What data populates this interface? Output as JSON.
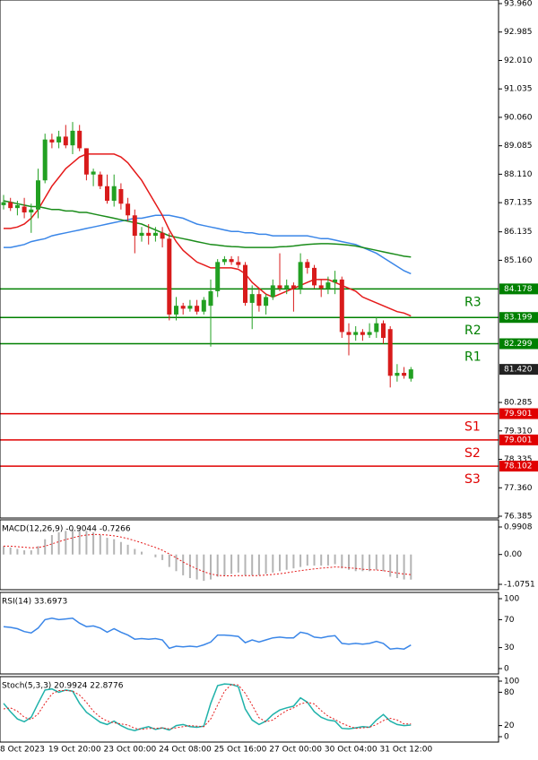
{
  "chart_data": [
    {
      "type": "candlestick",
      "categories": [
        "8 Oct 2023",
        null,
        null,
        null,
        null,
        null,
        null,
        "19 Oct 20:00",
        null,
        null,
        null,
        null,
        null,
        null,
        null,
        "23 Oct 00:00",
        null,
        null,
        null,
        null,
        null,
        null,
        null,
        "24 Oct 08:00",
        null,
        null,
        null,
        null,
        null,
        null,
        null,
        "25 Oct 16:00",
        null,
        null,
        null,
        null,
        null,
        null,
        null,
        "27 Oct 00:00",
        null,
        null,
        null,
        null,
        null,
        null,
        null,
        "30 Oct 04:00",
        null,
        null,
        null,
        null,
        null,
        null,
        null,
        "31 Oct 12:00",
        null,
        null,
        null,
        null
      ],
      "open": [
        87.05,
        87.15,
        86.95,
        87.0,
        86.8,
        86.9,
        87.9,
        89.3,
        89.2,
        89.4,
        89.1,
        89.6,
        89.0,
        88.1,
        88.1,
        87.7,
        87.2,
        87.6,
        87.1,
        86.7,
        86.0,
        86.1,
        86.0,
        86.1,
        85.9,
        83.3,
        83.6,
        83.5,
        83.6,
        83.4,
        83.6,
        84.1,
        85.1,
        85.2,
        85.1,
        85.0,
        83.7,
        84.0,
        83.6,
        83.9,
        84.3,
        84.2,
        84.3,
        84.2,
        85.1,
        84.9,
        84.3,
        84.2,
        84.4,
        84.5,
        82.7,
        82.6,
        82.7,
        82.6,
        82.7,
        83.0,
        82.8,
        81.2,
        81.3,
        81.1
      ],
      "high": [
        87.4,
        87.3,
        87.2,
        87.3,
        87.1,
        88.3,
        89.5,
        89.5,
        89.6,
        89.8,
        89.9,
        89.8,
        89.0,
        88.3,
        88.2,
        88.1,
        88.1,
        87.8,
        87.3,
        86.9,
        86.3,
        86.4,
        86.3,
        86.3,
        86.1,
        83.9,
        83.7,
        83.8,
        83.8,
        83.9,
        84.5,
        85.2,
        85.3,
        85.3,
        85.3,
        85.1,
        84.3,
        84.2,
        84.0,
        84.5,
        85.4,
        84.5,
        84.4,
        85.4,
        85.2,
        85.0,
        84.5,
        84.6,
        84.8,
        84.6,
        83.0,
        82.9,
        82.8,
        83.0,
        83.2,
        83.1,
        82.9,
        81.6,
        81.5,
        81.5
      ],
      "low": [
        86.9,
        86.85,
        86.7,
        86.6,
        86.1,
        86.6,
        87.8,
        89.0,
        89.0,
        89.0,
        88.8,
        88.9,
        87.9,
        87.7,
        87.6,
        87.1,
        87.0,
        86.9,
        86.5,
        85.4,
        85.8,
        85.7,
        85.8,
        85.6,
        83.1,
        83.1,
        83.3,
        83.4,
        83.3,
        83.3,
        82.2,
        83.9,
        85.0,
        85.0,
        84.9,
        83.6,
        82.8,
        83.4,
        83.3,
        83.8,
        84.1,
        84.0,
        83.4,
        84.0,
        84.7,
        84.2,
        83.9,
        84.0,
        84.0,
        82.5,
        81.9,
        82.4,
        82.4,
        82.5,
        82.5,
        82.3,
        80.8,
        81.0,
        81.1,
        81.0
      ],
      "close": [
        87.15,
        86.95,
        87.05,
        86.8,
        86.9,
        87.9,
        89.3,
        89.2,
        89.4,
        89.1,
        89.6,
        89.0,
        88.1,
        88.2,
        87.7,
        87.2,
        87.7,
        87.1,
        86.7,
        86.0,
        86.1,
        86.0,
        86.1,
        85.9,
        83.3,
        83.6,
        83.5,
        83.6,
        83.4,
        83.8,
        84.1,
        85.1,
        85.2,
        85.1,
        85.0,
        83.7,
        84.0,
        83.6,
        83.9,
        84.3,
        84.2,
        84.3,
        84.2,
        85.1,
        84.9,
        84.3,
        84.2,
        84.4,
        84.5,
        82.7,
        82.6,
        82.7,
        82.6,
        82.7,
        83.0,
        82.5,
        81.2,
        81.3,
        81.2,
        81.42
      ],
      "up_color": "#22a022",
      "down_color": "#d81b1b",
      "series": [
        {
          "color": "#3a86e8",
          "style": "solid",
          "values": [
            85.6,
            85.6,
            85.65,
            85.7,
            85.8,
            85.85,
            85.9,
            86.0,
            86.05,
            86.1,
            86.15,
            86.2,
            86.25,
            86.3,
            86.35,
            86.4,
            86.45,
            86.5,
            86.55,
            86.6,
            86.6,
            86.65,
            86.7,
            86.7,
            86.7,
            86.65,
            86.6,
            86.5,
            86.4,
            86.35,
            86.3,
            86.25,
            86.2,
            86.15,
            86.15,
            86.1,
            86.1,
            86.05,
            86.05,
            86.0,
            86.0,
            86.0,
            86.0,
            86.0,
            86.0,
            85.95,
            85.9,
            85.9,
            85.85,
            85.8,
            85.75,
            85.7,
            85.6,
            85.5,
            85.4,
            85.25,
            85.1,
            84.95,
            84.8,
            84.7
          ]
        },
        {
          "color": "#1a8c1a",
          "style": "solid",
          "values": [
            87.2,
            87.15,
            87.1,
            87.05,
            87.0,
            87.0,
            86.95,
            86.9,
            86.9,
            86.85,
            86.85,
            86.8,
            86.8,
            86.75,
            86.7,
            86.65,
            86.6,
            86.55,
            86.5,
            86.45,
            86.4,
            86.3,
            86.2,
            86.1,
            86.0,
            85.95,
            85.9,
            85.85,
            85.8,
            85.75,
            85.7,
            85.68,
            85.65,
            85.63,
            85.62,
            85.6,
            85.6,
            85.6,
            85.6,
            85.6,
            85.62,
            85.63,
            85.65,
            85.68,
            85.7,
            85.72,
            85.73,
            85.73,
            85.72,
            85.7,
            85.68,
            85.65,
            85.6,
            85.55,
            85.5,
            85.45,
            85.4,
            85.35,
            85.3,
            85.27
          ]
        },
        {
          "color": "#e51a1a",
          "style": "solid",
          "values": [
            86.25,
            86.25,
            86.3,
            86.4,
            86.6,
            86.9,
            87.3,
            87.7,
            88.0,
            88.3,
            88.5,
            88.7,
            88.8,
            88.8,
            88.8,
            88.8,
            88.8,
            88.7,
            88.5,
            88.2,
            87.9,
            87.5,
            87.1,
            86.7,
            86.2,
            85.8,
            85.5,
            85.3,
            85.1,
            85.0,
            84.9,
            84.9,
            84.9,
            84.9,
            84.85,
            84.7,
            84.4,
            84.2,
            84.0,
            83.9,
            84.0,
            84.1,
            84.2,
            84.3,
            84.4,
            84.5,
            84.5,
            84.5,
            84.4,
            84.3,
            84.2,
            84.1,
            83.9,
            83.8,
            83.7,
            83.6,
            83.5,
            83.4,
            83.35,
            83.25
          ]
        }
      ],
      "levels": [
        {
          "name": "R3",
          "value": 84.178,
          "color": "#008000"
        },
        {
          "name": "R2",
          "value": 83.199,
          "color": "#008000"
        },
        {
          "name": "R1",
          "value": 82.299,
          "color": "#008000"
        },
        {
          "name": "S1",
          "value": 79.901,
          "color": "#e00000"
        },
        {
          "name": "S2",
          "value": 79.001,
          "color": "#e00000"
        },
        {
          "name": "S3",
          "value": 78.102,
          "color": "#e00000"
        }
      ],
      "last_price": {
        "value": 81.42,
        "label": "81.420"
      },
      "ylim": [
        76.385,
        93.96
      ],
      "yticks": [
        {
          "value": 93.96,
          "label": "93.960"
        },
        {
          "value": 92.985,
          "label": "92.985"
        },
        {
          "value": 92.01,
          "label": "92.010"
        },
        {
          "value": 91.035,
          "label": "91.035"
        },
        {
          "value": 90.06,
          "label": "90.060"
        },
        {
          "value": 89.085,
          "label": "89.085"
        },
        {
          "value": 88.11,
          "label": "88.110"
        },
        {
          "value": 87.135,
          "label": "87.135"
        },
        {
          "value": 86.135,
          "label": "86.135"
        },
        {
          "value": 85.16,
          "label": "85.160"
        },
        {
          "value": 80.285,
          "label": "80.285"
        },
        {
          "value": 79.31,
          "label": "79.310"
        },
        {
          "value": 78.335,
          "label": "78.335"
        },
        {
          "value": 77.36,
          "label": "77.360"
        },
        {
          "value": 76.385,
          "label": "76.385"
        }
      ]
    },
    {
      "type": "macd",
      "title": "MACD(12,26,9) -0.9044 -0.7266",
      "histogram": {
        "color": "#b4b4b4",
        "values": [
          0.3,
          0.25,
          0.2,
          0.15,
          0.15,
          0.3,
          0.55,
          0.7,
          0.8,
          0.85,
          0.9,
          0.9,
          0.85,
          0.8,
          0.7,
          0.6,
          0.55,
          0.45,
          0.35,
          0.2,
          0.1,
          0.0,
          -0.1,
          -0.2,
          -0.45,
          -0.6,
          -0.75,
          -0.85,
          -0.9,
          -0.95,
          -0.9,
          -0.8,
          -0.75,
          -0.7,
          -0.65,
          -0.75,
          -0.75,
          -0.75,
          -0.7,
          -0.65,
          -0.6,
          -0.55,
          -0.5,
          -0.45,
          -0.4,
          -0.4,
          -0.4,
          -0.4,
          -0.35,
          -0.5,
          -0.55,
          -0.6,
          -0.6,
          -0.6,
          -0.55,
          -0.6,
          -0.8,
          -0.85,
          -0.9,
          -0.9044
        ]
      },
      "series": [
        {
          "color": "#e51a1a",
          "style": "dotted",
          "values": [
            0.3,
            0.3,
            0.28,
            0.26,
            0.24,
            0.25,
            0.3,
            0.38,
            0.46,
            0.54,
            0.6,
            0.66,
            0.7,
            0.72,
            0.72,
            0.7,
            0.67,
            0.63,
            0.57,
            0.5,
            0.42,
            0.34,
            0.25,
            0.15,
            0.02,
            -0.12,
            -0.27,
            -0.4,
            -0.52,
            -0.62,
            -0.7,
            -0.75,
            -0.77,
            -0.77,
            -0.76,
            -0.76,
            -0.76,
            -0.76,
            -0.74,
            -0.72,
            -0.69,
            -0.66,
            -0.62,
            -0.58,
            -0.55,
            -0.52,
            -0.49,
            -0.47,
            -0.45,
            -0.46,
            -0.48,
            -0.5,
            -0.53,
            -0.55,
            -0.56,
            -0.58,
            -0.62,
            -0.67,
            -0.7,
            -0.7266
          ]
        }
      ],
      "ylim": [
        -1.0751,
        0.9908
      ],
      "yticks": [
        0.9908,
        {
          "value": 0,
          "label": "0.00"
        },
        -1.0751
      ]
    },
    {
      "type": "line",
      "title": "RSI(14) 33.6973",
      "series": [
        {
          "color": "#3a86e8",
          "style": "solid",
          "values": [
            60,
            59,
            57,
            53,
            51,
            58,
            70,
            72,
            70,
            71,
            72,
            65,
            60,
            61,
            58,
            52,
            57,
            52,
            48,
            42,
            43,
            42,
            43,
            41,
            29,
            32,
            31,
            32,
            31,
            34,
            38,
            48,
            48,
            47,
            46,
            37,
            41,
            38,
            41,
            44,
            45,
            44,
            44,
            52,
            50,
            45,
            44,
            46,
            47,
            36,
            35,
            36,
            35,
            36,
            39,
            36,
            28,
            29,
            28,
            33.6973
          ]
        }
      ],
      "ylim": [
        0,
        100
      ],
      "yticks": [
        100,
        70,
        30,
        0
      ]
    },
    {
      "type": "line",
      "title": "Stoch(5,3,3) 20.9924 22.8776",
      "series": [
        {
          "color": "#20b2aa",
          "style": "solid",
          "values": [
            60,
            45,
            32,
            27,
            35,
            60,
            84,
            86,
            80,
            84,
            82,
            60,
            44,
            35,
            26,
            22,
            28,
            20,
            14,
            11,
            15,
            18,
            13,
            16,
            12,
            20,
            22,
            18,
            17,
            19,
            60,
            92,
            95,
            94,
            90,
            50,
            30,
            22,
            28,
            40,
            48,
            52,
            55,
            70,
            62,
            45,
            35,
            30,
            28,
            15,
            14,
            16,
            18,
            17,
            30,
            40,
            28,
            22,
            20,
            20.9924
          ]
        },
        {
          "color": "#e51a1a",
          "style": "dotted",
          "values": [
            50,
            52,
            46,
            35,
            31,
            41,
            60,
            77,
            83,
            83,
            82,
            75,
            62,
            46,
            35,
            28,
            25,
            23,
            21,
            15,
            13,
            15,
            15,
            16,
            14,
            16,
            18,
            20,
            19,
            18,
            32,
            57,
            82,
            94,
            93,
            78,
            57,
            34,
            27,
            30,
            39,
            47,
            52,
            59,
            62,
            59,
            47,
            37,
            31,
            24,
            19,
            15,
            16,
            17,
            22,
            29,
            33,
            30,
            23,
            22.8776
          ]
        }
      ],
      "ylim": [
        0,
        100
      ],
      "yticks": [
        100,
        80,
        20,
        0
      ]
    }
  ]
}
